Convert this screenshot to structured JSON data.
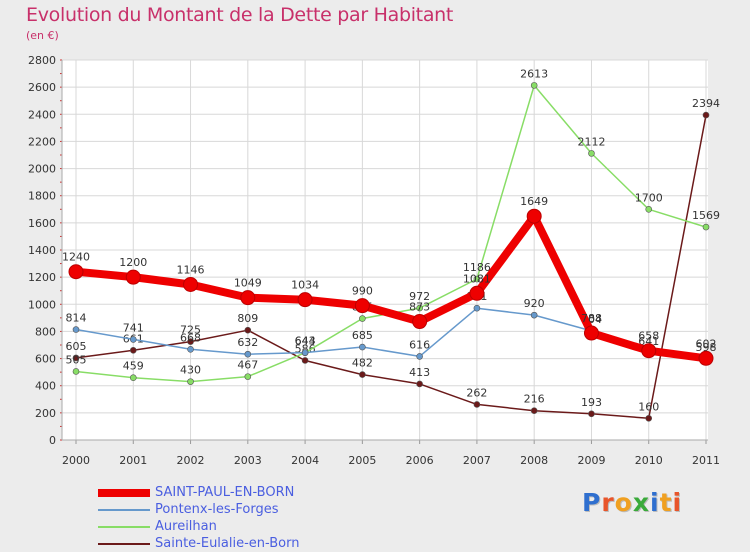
{
  "title": "Evolution du Montant de la Dette par Habitant",
  "unit_label": "(en €)",
  "logo": {
    "text": "Proxiti",
    "letter_colors": [
      "#2f6fcf",
      "#e8552a",
      "#f0a020",
      "#3aaa3a",
      "#2f6fcf",
      "#f0a020",
      "#e8552a"
    ]
  },
  "chart_data": {
    "type": "line",
    "categories": [
      "2000",
      "2001",
      "2002",
      "2003",
      "2004",
      "2005",
      "2006",
      "2007",
      "2008",
      "2009",
      "2010",
      "2011"
    ],
    "ylim": [
      0,
      2800
    ],
    "yticks": [
      0,
      200,
      400,
      600,
      800,
      1000,
      1200,
      1400,
      1600,
      1800,
      2000,
      2200,
      2400,
      2600,
      2800
    ],
    "grid": true,
    "legend_position": "bottom-left",
    "series": [
      {
        "name": "Sainte-Eulalie-en-Born",
        "color": "#6b1a1a",
        "values": [
          605,
          661,
          725,
          809,
          586,
          482,
          413,
          262,
          216,
          193,
          160,
          2394
        ],
        "labels": [
          "605",
          "661",
          "725",
          "809",
          "586",
          "482",
          "413",
          "262",
          "216",
          "193",
          "160",
          "2394"
        ]
      },
      {
        "name": "Aureilhan",
        "color": "#88dd66",
        "values": [
          505,
          459,
          430,
          467,
          643,
          895,
          972,
          1186,
          2613,
          2112,
          1700,
          1569
        ],
        "labels": [
          "505",
          "459",
          "430",
          "467",
          "643",
          "895",
          "972",
          "1186",
          "2613",
          "2112",
          "1700",
          "1569"
        ]
      },
      {
        "name": "Pontenx-les-Forges",
        "color": "#6699cc",
        "values": [
          814,
          741,
          668,
          632,
          644,
          685,
          616,
          971,
          920,
          804,
          641,
          598
        ],
        "labels": [
          "814",
          "741",
          "668",
          "632",
          "644",
          "685",
          "616",
          "971",
          "920",
          "804",
          "641",
          "598"
        ]
      },
      {
        "name": "SAINT-PAUL-EN-BORN",
        "color": "#ee0000",
        "values": [
          1240,
          1200,
          1146,
          1049,
          1034,
          990,
          873,
          1081,
          1649,
          788,
          658,
          602
        ],
        "labels": [
          "1240",
          "1200",
          "1146",
          "1049",
          "1034",
          "990",
          "873",
          "1081",
          "1649",
          "788",
          "658",
          "602"
        ]
      }
    ],
    "legend": [
      {
        "name": "SAINT-PAUL-EN-BORN",
        "color": "#ee0000",
        "thickness": 8
      },
      {
        "name": "Pontenx-les-Forges",
        "color": "#6699cc",
        "thickness": 2
      },
      {
        "name": "Aureilhan",
        "color": "#88dd66",
        "thickness": 2
      },
      {
        "name": "Sainte-Eulalie-en-Born",
        "color": "#6b1a1a",
        "thickness": 2
      }
    ]
  }
}
